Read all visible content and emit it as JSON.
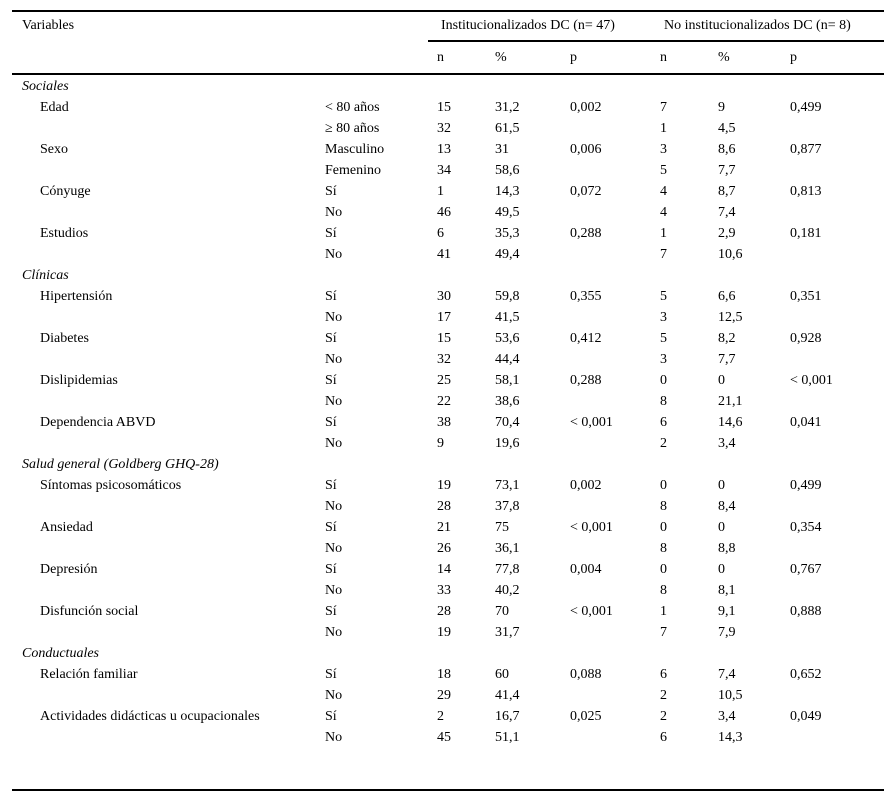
{
  "table": {
    "header": {
      "variables_label": "Variables",
      "group1": "Institucionalizados DC (n= 47)",
      "group2": "No institucionalizados DC (n= 8)",
      "subcols": [
        "n",
        "%",
        "p"
      ]
    },
    "sections": [
      {
        "title": "Sociales",
        "rows": [
          {
            "variable": "Edad",
            "category": "< 80 años",
            "n1": "15",
            "pct1": "31,2",
            "p1": "0,002",
            "n2": "7",
            "pct2": "9",
            "p2": "0,499"
          },
          {
            "variable": "",
            "category": "≥ 80 años",
            "n1": "32",
            "pct1": "61,5",
            "p1": "",
            "n2": "1",
            "pct2": "4,5",
            "p2": ""
          },
          {
            "variable": "Sexo",
            "category": "Masculino",
            "n1": "13",
            "pct1": "31",
            "p1": "0,006",
            "n2": "3",
            "pct2": "8,6",
            "p2": "0,877"
          },
          {
            "variable": "",
            "category": "Femenino",
            "n1": "34",
            "pct1": "58,6",
            "p1": "",
            "n2": "5",
            "pct2": "7,7",
            "p2": ""
          },
          {
            "variable": "Cónyuge",
            "category": "Sí",
            "n1": "1",
            "pct1": "14,3",
            "p1": "0,072",
            "n2": "4",
            "pct2": "8,7",
            "p2": "0,813"
          },
          {
            "variable": "",
            "category": "No",
            "n1": "46",
            "pct1": "49,5",
            "p1": "",
            "n2": "4",
            "pct2": "7,4",
            "p2": ""
          },
          {
            "variable": "Estudios",
            "category": "Sí",
            "n1": "6",
            "pct1": "35,3",
            "p1": "0,288",
            "n2": "1",
            "pct2": "2,9",
            "p2": "0,181"
          },
          {
            "variable": "",
            "category": "No",
            "n1": "41",
            "pct1": "49,4",
            "p1": "",
            "n2": "7",
            "pct2": "10,6",
            "p2": ""
          }
        ]
      },
      {
        "title": "Clínicas",
        "rows": [
          {
            "variable": "Hipertensión",
            "category": "Sí",
            "n1": "30",
            "pct1": "59,8",
            "p1": "0,355",
            "n2": "5",
            "pct2": "6,6",
            "p2": "0,351"
          },
          {
            "variable": "",
            "category": "No",
            "n1": "17",
            "pct1": "41,5",
            "p1": "",
            "n2": "3",
            "pct2": "12,5",
            "p2": ""
          },
          {
            "variable": "Diabetes",
            "category": "Sí",
            "n1": "15",
            "pct1": "53,6",
            "p1": "0,412",
            "n2": "5",
            "pct2": "8,2",
            "p2": "0,928"
          },
          {
            "variable": "",
            "category": "No",
            "n1": "32",
            "pct1": "44,4",
            "p1": "",
            "n2": "3",
            "pct2": "7,7",
            "p2": ""
          },
          {
            "variable": "Dislipidemias",
            "category": "Sí",
            "n1": "25",
            "pct1": "58,1",
            "p1": "0,288",
            "n2": "0",
            "pct2": "0",
            "p2": "< 0,001"
          },
          {
            "variable": "",
            "category": "No",
            "n1": "22",
            "pct1": "38,6",
            "p1": "",
            "n2": "8",
            "pct2": "21,1",
            "p2": ""
          },
          {
            "variable": "Dependencia ABVD",
            "category": "Sí",
            "n1": "38",
            "pct1": "70,4",
            "p1": "< 0,001",
            "n2": "6",
            "pct2": "14,6",
            "p2": "0,041"
          },
          {
            "variable": "",
            "category": "No",
            "n1": "9",
            "pct1": "19,6",
            "p1": "",
            "n2": "2",
            "pct2": "3,4",
            "p2": ""
          }
        ]
      },
      {
        "title": "Salud general (Goldberg GHQ-28)",
        "rows": [
          {
            "variable": "Síntomas psicosomáticos",
            "category": "Sí",
            "n1": "19",
            "pct1": "73,1",
            "p1": "0,002",
            "n2": "0",
            "pct2": "0",
            "p2": "0,499"
          },
          {
            "variable": "",
            "category": "No",
            "n1": "28",
            "pct1": "37,8",
            "p1": "",
            "n2": "8",
            "pct2": "8,4",
            "p2": ""
          },
          {
            "variable": "Ansiedad",
            "category": "Sí",
            "n1": "21",
            "pct1": "75",
            "p1": "< 0,001",
            "n2": "0",
            "pct2": "0",
            "p2": "0,354"
          },
          {
            "variable": "",
            "category": "No",
            "n1": "26",
            "pct1": "36,1",
            "p1": "",
            "n2": "8",
            "pct2": "8,8",
            "p2": ""
          },
          {
            "variable": "Depresión",
            "category": "Sí",
            "n1": "14",
            "pct1": "77,8",
            "p1": "0,004",
            "n2": "0",
            "pct2": "0",
            "p2": "0,767"
          },
          {
            "variable": "",
            "category": "No",
            "n1": "33",
            "pct1": "40,2",
            "p1": "",
            "n2": "8",
            "pct2": "8,1",
            "p2": ""
          },
          {
            "variable": "Disfunción social",
            "category": "Sí",
            "n1": "28",
            "pct1": "70",
            "p1": "< 0,001",
            "n2": "1",
            "pct2": "9,1",
            "p2": "0,888"
          },
          {
            "variable": "",
            "category": "No",
            "n1": "19",
            "pct1": "31,7",
            "p1": "",
            "n2": "7",
            "pct2": "7,9",
            "p2": ""
          }
        ]
      },
      {
        "title": "Conductuales",
        "rows": [
          {
            "variable": "Relación familiar",
            "category": "Sí",
            "n1": "18",
            "pct1": "60",
            "p1": "0,088",
            "n2": "6",
            "pct2": "7,4",
            "p2": "0,652"
          },
          {
            "variable": "",
            "category": "No",
            "n1": "29",
            "pct1": "41,4",
            "p1": "",
            "n2": "2",
            "pct2": "10,5",
            "p2": ""
          },
          {
            "variable": "Actividades didácticas u ocupacionales",
            "category": "Sí",
            "n1": "2",
            "pct1": "16,7",
            "p1": "0,025",
            "n2": "2",
            "pct2": "3,4",
            "p2": "0,049"
          },
          {
            "variable": "",
            "category": "No",
            "n1": "45",
            "pct1": "51,1",
            "p1": "",
            "n2": "6",
            "pct2": "14,3",
            "p2": ""
          }
        ]
      }
    ]
  }
}
